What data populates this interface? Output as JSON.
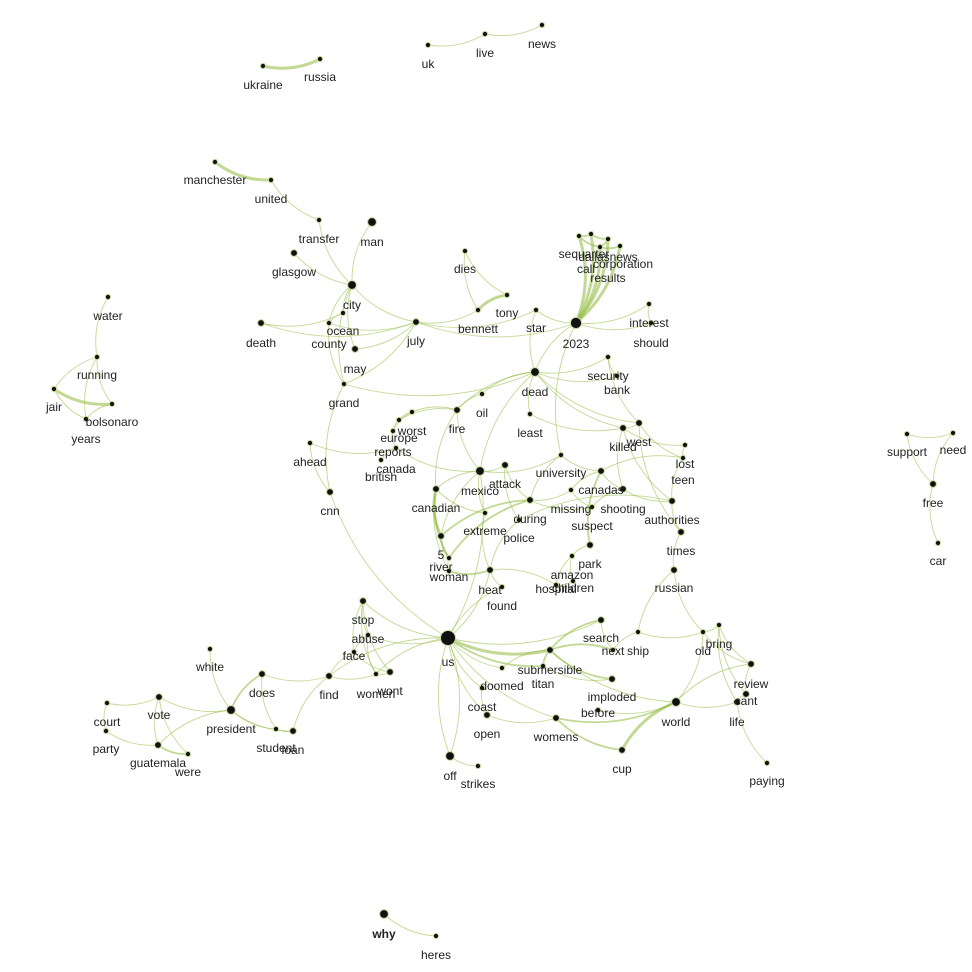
{
  "colors": {
    "edge": "#8fba3c",
    "node": "#111111",
    "label": "#222222",
    "background": "#ffffff"
  },
  "nodes": [
    {
      "id": "ukraine",
      "label": "ukraine",
      "weight": 1
    },
    {
      "id": "russia",
      "label": "russia",
      "weight": 1
    },
    {
      "id": "uk",
      "label": "uk",
      "weight": 1
    },
    {
      "id": "live",
      "label": "live",
      "weight": 1
    },
    {
      "id": "news",
      "label": "news",
      "weight": 1
    },
    {
      "id": "manchester",
      "label": "manchester",
      "weight": 1
    },
    {
      "id": "united",
      "label": "united",
      "weight": 1
    },
    {
      "id": "transfer",
      "label": "transfer",
      "weight": 1
    },
    {
      "id": "man",
      "label": "man",
      "weight": 3
    },
    {
      "id": "glasgow",
      "label": "glasgow",
      "weight": 2
    },
    {
      "id": "city",
      "label": "city",
      "weight": 3
    },
    {
      "id": "ocean",
      "label": "ocean",
      "weight": 1
    },
    {
      "id": "county",
      "label": "county",
      "weight": 1
    },
    {
      "id": "death",
      "label": "death",
      "weight": 2
    },
    {
      "id": "july",
      "label": "july",
      "weight": 2
    },
    {
      "id": "may",
      "label": "may",
      "weight": 2
    },
    {
      "id": "grand",
      "label": "grand",
      "weight": 1
    },
    {
      "id": "dies",
      "label": "dies",
      "weight": 1
    },
    {
      "id": "tony",
      "label": "tony",
      "weight": 1
    },
    {
      "id": "bennett",
      "label": "bennett",
      "weight": 1
    },
    {
      "id": "star",
      "label": "star",
      "weight": 1
    },
    {
      "id": "2023",
      "label": "2023",
      "weight": 4
    },
    {
      "id": "sequarter",
      "label": "sequarter",
      "weight": 1
    },
    {
      "id": "dallasnews",
      "label": "dallasnews",
      "weight": 1
    },
    {
      "id": "call",
      "label": "call",
      "weight": 1
    },
    {
      "id": "corporation",
      "label": "corporation",
      "weight": 1
    },
    {
      "id": "results",
      "label": "results",
      "weight": 1
    },
    {
      "id": "interest",
      "label": "interest",
      "weight": 1
    },
    {
      "id": "should",
      "label": "should",
      "weight": 1
    },
    {
      "id": "water",
      "label": "water",
      "weight": 1
    },
    {
      "id": "running",
      "label": "running",
      "weight": 1
    },
    {
      "id": "jair",
      "label": "jair",
      "weight": 1
    },
    {
      "id": "bolsonaro",
      "label": "bolsonaro",
      "weight": 1
    },
    {
      "id": "years",
      "label": "years",
      "weight": 1
    },
    {
      "id": "dead",
      "label": "dead",
      "weight": 3
    },
    {
      "id": "security",
      "label": "security",
      "weight": 1
    },
    {
      "id": "bank",
      "label": "bank",
      "weight": 1
    },
    {
      "id": "oil",
      "label": "oil",
      "weight": 1
    },
    {
      "id": "worst",
      "label": "worst",
      "weight": 1
    },
    {
      "id": "europe",
      "label": "europe",
      "weight": 1
    },
    {
      "id": "fire",
      "label": "fire",
      "weight": 2
    },
    {
      "id": "least",
      "label": "least",
      "weight": 1
    },
    {
      "id": "killed",
      "label": "killed",
      "weight": 2
    },
    {
      "id": "west",
      "label": "west",
      "weight": 2
    },
    {
      "id": "reports",
      "label": "reports",
      "weight": 1
    },
    {
      "id": "ahead",
      "label": "ahead",
      "weight": 1
    },
    {
      "id": "canada",
      "label": "canada",
      "weight": 1
    },
    {
      "id": "british",
      "label": "british",
      "weight": 1
    },
    {
      "id": "mexico",
      "label": "mexico",
      "weight": 3
    },
    {
      "id": "attack",
      "label": "attack",
      "weight": 2
    },
    {
      "id": "university",
      "label": "university",
      "weight": 1
    },
    {
      "id": "lost",
      "label": "lost",
      "weight": 1
    },
    {
      "id": "teen",
      "label": "teen",
      "weight": 1
    },
    {
      "id": "canadas",
      "label": "canadas",
      "weight": 2
    },
    {
      "id": "cnn",
      "label": "cnn",
      "weight": 2
    },
    {
      "id": "canadian",
      "label": "canadian",
      "weight": 2
    },
    {
      "id": "during",
      "label": "during",
      "weight": 2
    },
    {
      "id": "missing",
      "label": "missing",
      "weight": 1
    },
    {
      "id": "shooting",
      "label": "shooting",
      "weight": 2
    },
    {
      "id": "authorities",
      "label": "authorities",
      "weight": 2
    },
    {
      "id": "extreme",
      "label": "extreme",
      "weight": 1
    },
    {
      "id": "suspect",
      "label": "suspect",
      "weight": 1
    },
    {
      "id": "police",
      "label": "police",
      "weight": 1
    },
    {
      "id": "5",
      "label": "5",
      "weight": 2
    },
    {
      "id": "river",
      "label": "river",
      "weight": 1
    },
    {
      "id": "woman",
      "label": "woman",
      "weight": 1
    },
    {
      "id": "park",
      "label": "park",
      "weight": 2
    },
    {
      "id": "times",
      "label": "times",
      "weight": 2
    },
    {
      "id": "amazon",
      "label": "amazon",
      "weight": 1
    },
    {
      "id": "hospital",
      "label": "hospital",
      "weight": 1
    },
    {
      "id": "children",
      "label": "children",
      "weight": 1
    },
    {
      "id": "heat",
      "label": "heat",
      "weight": 2
    },
    {
      "id": "russian",
      "label": "russian",
      "weight": 2
    },
    {
      "id": "found",
      "label": "found",
      "weight": 1
    },
    {
      "id": "support",
      "label": "support",
      "weight": 1
    },
    {
      "id": "need",
      "label": "need",
      "weight": 1
    },
    {
      "id": "free",
      "label": "free",
      "weight": 2
    },
    {
      "id": "car",
      "label": "car",
      "weight": 1
    },
    {
      "id": "stop",
      "label": "stop",
      "weight": 2
    },
    {
      "id": "abuse",
      "label": "abuse",
      "weight": 1
    },
    {
      "id": "face",
      "label": "face",
      "weight": 1
    },
    {
      "id": "us",
      "label": "us",
      "weight": 5
    },
    {
      "id": "search",
      "label": "search",
      "weight": 2
    },
    {
      "id": "next",
      "label": "next",
      "weight": 1
    },
    {
      "id": "ship",
      "label": "ship",
      "weight": 1
    },
    {
      "id": "old",
      "label": "old",
      "weight": 1
    },
    {
      "id": "bring",
      "label": "bring",
      "weight": 1
    },
    {
      "id": "white",
      "label": "white",
      "weight": 1
    },
    {
      "id": "does",
      "label": "does",
      "weight": 2
    },
    {
      "id": "find",
      "label": "find",
      "weight": 2
    },
    {
      "id": "women",
      "label": "women",
      "weight": 1
    },
    {
      "id": "wont",
      "label": "wont",
      "weight": 2
    },
    {
      "id": "submersible",
      "label": "submersible",
      "weight": 2
    },
    {
      "id": "titan",
      "label": "titan",
      "weight": 1
    },
    {
      "id": "doomed",
      "label": "doomed",
      "weight": 1
    },
    {
      "id": "review",
      "label": "review",
      "weight": 2
    },
    {
      "id": "cant",
      "label": "cant",
      "weight": 2
    },
    {
      "id": "court",
      "label": "court",
      "weight": 1
    },
    {
      "id": "vote",
      "label": "vote",
      "weight": 2
    },
    {
      "id": "president",
      "label": "president",
      "weight": 3
    },
    {
      "id": "party",
      "label": "party",
      "weight": 1
    },
    {
      "id": "guatemala",
      "label": "guatemala",
      "weight": 2
    },
    {
      "id": "were",
      "label": "were",
      "weight": 1
    },
    {
      "id": "student",
      "label": "student",
      "weight": 1
    },
    {
      "id": "loan",
      "label": "loan",
      "weight": 2
    },
    {
      "id": "coast",
      "label": "coast",
      "weight": 1
    },
    {
      "id": "imploded",
      "label": "imploded",
      "weight": 2
    },
    {
      "id": "before",
      "label": "before",
      "weight": 1
    },
    {
      "id": "world",
      "label": "world",
      "weight": 3
    },
    {
      "id": "life",
      "label": "life",
      "weight": 2
    },
    {
      "id": "open",
      "label": "open",
      "weight": 2
    },
    {
      "id": "womens",
      "label": "womens",
      "weight": 2
    },
    {
      "id": "off",
      "label": "off",
      "weight": 3
    },
    {
      "id": "strikes",
      "label": "strikes",
      "weight": 1
    },
    {
      "id": "cup",
      "label": "cup",
      "weight": 2
    },
    {
      "id": "paying",
      "label": "paying",
      "weight": 1
    },
    {
      "id": "why",
      "label": "why",
      "weight": 3
    },
    {
      "id": "heres",
      "label": "heres",
      "weight": 1
    }
  ],
  "edges": [
    [
      "ukraine",
      "russia",
      3
    ],
    [
      "uk",
      "live",
      1
    ],
    [
      "live",
      "news",
      1
    ],
    [
      "manchester",
      "united",
      3
    ],
    [
      "united",
      "transfer",
      1
    ],
    [
      "transfer",
      "city",
      1
    ],
    [
      "man",
      "city",
      1
    ],
    [
      "glasgow",
      "city",
      1
    ],
    [
      "city",
      "ocean",
      1
    ],
    [
      "city",
      "county",
      1
    ],
    [
      "city",
      "july",
      1
    ],
    [
      "city",
      "may",
      1
    ],
    [
      "city",
      "grand",
      1
    ],
    [
      "ocean",
      "county",
      1
    ],
    [
      "death",
      "ocean",
      1
    ],
    [
      "death",
      "july",
      1
    ],
    [
      "county",
      "july",
      1
    ],
    [
      "may",
      "july",
      1
    ],
    [
      "county",
      "grand",
      1
    ],
    [
      "grand",
      "july",
      1
    ],
    [
      "grand",
      "cnn",
      1
    ],
    [
      "grand",
      "dead",
      1
    ],
    [
      "july",
      "bennett",
      1
    ],
    [
      "july",
      "2023",
      1
    ],
    [
      "july",
      "star",
      1
    ],
    [
      "dies",
      "tony",
      1
    ],
    [
      "tony",
      "bennett",
      3
    ],
    [
      "dies",
      "bennett",
      1
    ],
    [
      "star",
      "dead",
      1
    ],
    [
      "star",
      "2023",
      1
    ],
    [
      "2023",
      "sequarter",
      4
    ],
    [
      "2023",
      "dallasnews",
      4
    ],
    [
      "2023",
      "call",
      4
    ],
    [
      "2023",
      "corporation",
      4
    ],
    [
      "2023",
      "results",
      4
    ],
    [
      "sequarter",
      "dallasnews",
      2
    ],
    [
      "sequarter",
      "call",
      2
    ],
    [
      "call",
      "corporation",
      2
    ],
    [
      "dallasnews",
      "results",
      2
    ],
    [
      "call",
      "results",
      2
    ],
    [
      "2023",
      "interest",
      1
    ],
    [
      "2023",
      "should",
      1
    ],
    [
      "interest",
      "should",
      1
    ],
    [
      "2023",
      "dead",
      1
    ],
    [
      "2023",
      "university",
      1
    ],
    [
      "water",
      "running",
      1
    ],
    [
      "running",
      "jair",
      1
    ],
    [
      "running",
      "bolsonaro",
      1
    ],
    [
      "running",
      "years",
      1
    ],
    [
      "jair",
      "bolsonaro",
      3
    ],
    [
      "jair",
      "years",
      1
    ],
    [
      "bolsonaro",
      "years",
      1
    ],
    [
      "dead",
      "security",
      1
    ],
    [
      "dead",
      "bank",
      1
    ],
    [
      "dead",
      "oil",
      1
    ],
    [
      "dead",
      "least",
      1
    ],
    [
      "dead",
      "killed",
      1
    ],
    [
      "dead",
      "mexico",
      1
    ],
    [
      "dead",
      "west",
      1
    ],
    [
      "dead",
      "fire",
      1
    ],
    [
      "security",
      "bank",
      1
    ],
    [
      "security",
      "west",
      1
    ],
    [
      "oil",
      "fire",
      1
    ],
    [
      "fire",
      "worst",
      1
    ],
    [
      "fire",
      "europe",
      1
    ],
    [
      "fire",
      "canadian",
      1
    ],
    [
      "fire",
      "mexico",
      1
    ],
    [
      "worst",
      "europe",
      1
    ],
    [
      "worst",
      "reports",
      1
    ],
    [
      "europe",
      "reports",
      1
    ],
    [
      "reports",
      "canada",
      1
    ],
    [
      "canada",
      "british",
      1
    ],
    [
      "canada",
      "mexico",
      1
    ],
    [
      "least",
      "killed",
      1
    ],
    [
      "killed",
      "west",
      1
    ],
    [
      "killed",
      "shooting",
      1
    ],
    [
      "killed",
      "authorities",
      1
    ],
    [
      "killed",
      "lost",
      1
    ],
    [
      "west",
      "teen",
      1
    ],
    [
      "west",
      "times",
      1
    ],
    [
      "ahead",
      "canada",
      1
    ],
    [
      "ahead",
      "cnn",
      1
    ],
    [
      "cnn",
      "us",
      1
    ],
    [
      "mexico",
      "attack",
      1
    ],
    [
      "mexico",
      "university",
      1
    ],
    [
      "mexico",
      "5",
      1
    ],
    [
      "mexico",
      "extreme",
      1
    ],
    [
      "mexico",
      "canadian",
      1
    ],
    [
      "attack",
      "during",
      1
    ],
    [
      "attack",
      "police",
      1
    ],
    [
      "university",
      "canadas",
      1
    ],
    [
      "university",
      "during",
      1
    ],
    [
      "lost",
      "teen",
      1
    ],
    [
      "teen",
      "canadas",
      1
    ],
    [
      "teen",
      "authorities",
      1
    ],
    [
      "canadas",
      "shooting",
      1
    ],
    [
      "canadas",
      "missing",
      1
    ],
    [
      "canadas",
      "park",
      2
    ],
    [
      "canadian",
      "5",
      3
    ],
    [
      "canadian",
      "river",
      2
    ],
    [
      "canadian",
      "woman",
      1
    ],
    [
      "canadian",
      "extreme",
      1
    ],
    [
      "during",
      "missing",
      1
    ],
    [
      "during",
      "suspect",
      1
    ],
    [
      "during",
      "5",
      2
    ],
    [
      "during",
      "river",
      2
    ],
    [
      "missing",
      "suspect",
      1
    ],
    [
      "shooting",
      "suspect",
      1
    ],
    [
      "shooting",
      "authorities",
      1
    ],
    [
      "authorities",
      "times",
      1
    ],
    [
      "authorities",
      "police",
      1
    ],
    [
      "extreme",
      "heat",
      1
    ],
    [
      "police",
      "heat",
      1
    ],
    [
      "5",
      "river",
      2
    ],
    [
      "river",
      "woman",
      1
    ],
    [
      "woman",
      "heat",
      2
    ],
    [
      "park",
      "amazon",
      1
    ],
    [
      "amazon",
      "hospital",
      1
    ],
    [
      "amazon",
      "children",
      1
    ],
    [
      "hospital",
      "children",
      1
    ],
    [
      "hospital",
      "heat",
      1
    ],
    [
      "heat",
      "found",
      1
    ],
    [
      "found",
      "us",
      1
    ],
    [
      "times",
      "russian",
      1
    ],
    [
      "russian",
      "ship",
      1
    ],
    [
      "russian",
      "old",
      1
    ],
    [
      "support",
      "free",
      1
    ],
    [
      "need",
      "free",
      1
    ],
    [
      "support",
      "need",
      1
    ],
    [
      "free",
      "car",
      1
    ],
    [
      "stop",
      "abuse",
      1
    ],
    [
      "stop",
      "face",
      1
    ],
    [
      "stop",
      "us",
      1
    ],
    [
      "stop",
      "women",
      1
    ],
    [
      "stop",
      "wont",
      1
    ],
    [
      "abuse",
      "face",
      1
    ],
    [
      "abuse",
      "us",
      1
    ],
    [
      "face",
      "wont",
      1
    ],
    [
      "face",
      "find",
      1
    ],
    [
      "abuse",
      "women",
      1
    ],
    [
      "us",
      "mexico",
      1
    ],
    [
      "us",
      "heat",
      1
    ],
    [
      "us",
      "submersible",
      3
    ],
    [
      "us",
      "titan",
      2
    ],
    [
      "us",
      "doomed",
      1
    ],
    [
      "us",
      "coast",
      1
    ],
    [
      "us",
      "open",
      1
    ],
    [
      "us",
      "off",
      1
    ],
    [
      "us",
      "womens",
      1
    ],
    [
      "us",
      "find",
      1
    ],
    [
      "us",
      "women",
      1
    ],
    [
      "us",
      "search",
      1
    ],
    [
      "search",
      "next",
      1
    ],
    [
      "search",
      "submersible",
      2
    ],
    [
      "next",
      "submersible",
      2
    ],
    [
      "ship",
      "next",
      1
    ],
    [
      "ship",
      "old",
      1
    ],
    [
      "submersible",
      "titan",
      2
    ],
    [
      "submersible",
      "imploded",
      2
    ],
    [
      "submersible",
      "doomed",
      1
    ],
    [
      "titan",
      "imploded",
      1
    ],
    [
      "submersible",
      "world",
      1
    ],
    [
      "old",
      "bring",
      1
    ],
    [
      "old",
      "review",
      1
    ],
    [
      "bring",
      "review",
      1
    ],
    [
      "bring",
      "cant",
      1
    ],
    [
      "review",
      "cant",
      1
    ],
    [
      "review",
      "world",
      1
    ],
    [
      "cant",
      "life",
      1
    ],
    [
      "world",
      "life",
      1
    ],
    [
      "world",
      "old",
      1
    ],
    [
      "life",
      "paying",
      1
    ],
    [
      "bring",
      "life",
      1
    ],
    [
      "white",
      "president",
      1
    ],
    [
      "does",
      "president",
      2
    ],
    [
      "does",
      "find",
      1
    ],
    [
      "find",
      "women",
      1
    ],
    [
      "women",
      "wont",
      1
    ],
    [
      "court",
      "vote",
      1
    ],
    [
      "court",
      "party",
      1
    ],
    [
      "vote",
      "president",
      1
    ],
    [
      "vote",
      "guatemala",
      1
    ],
    [
      "vote",
      "were",
      1
    ],
    [
      "president",
      "guatemala",
      1
    ],
    [
      "party",
      "guatemala",
      1
    ],
    [
      "guatemala",
      "were",
      2
    ],
    [
      "president",
      "student",
      1
    ],
    [
      "student",
      "loan",
      1
    ],
    [
      "president",
      "loan",
      1
    ],
    [
      "does",
      "student",
      1
    ],
    [
      "find",
      "loan",
      1
    ],
    [
      "coast",
      "open",
      1
    ],
    [
      "open",
      "womens",
      1
    ],
    [
      "womens",
      "world",
      2
    ],
    [
      "womens",
      "cup",
      2
    ],
    [
      "world",
      "cup",
      3
    ],
    [
      "before",
      "world",
      1
    ],
    [
      "off",
      "strikes",
      1
    ],
    [
      "off",
      "us",
      1
    ],
    [
      "why",
      "heres",
      1
    ]
  ]
}
